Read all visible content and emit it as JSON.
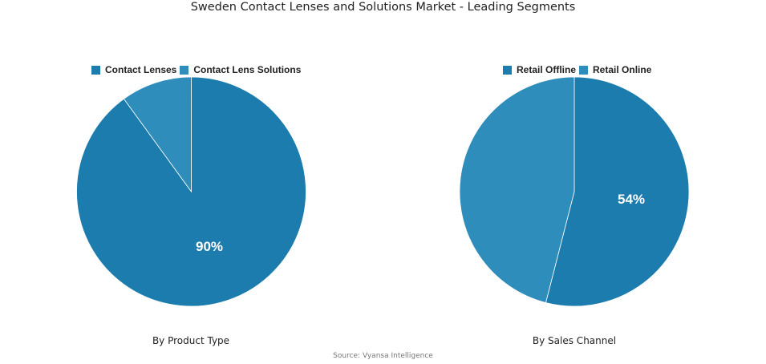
{
  "title": "Sweden Contact Lenses and Solutions Market - Leading Segments",
  "source": "Source: Vyansa Intelligence",
  "colors": {
    "primary": "#1c7cae",
    "secondary": "#2e8dbb"
  },
  "charts": [
    {
      "caption": "By Product Type",
      "legend": [
        "Contact Lenses",
        "Contact Lens Solutions"
      ],
      "label": "90%"
    },
    {
      "caption": "By Sales Channel",
      "legend": [
        "Retail Offline",
        "Retail Online"
      ],
      "label": "54%"
    }
  ],
  "chart_data": [
    {
      "type": "pie",
      "title": "By Product Type",
      "categories": [
        "Contact Lenses",
        "Contact Lens Solutions"
      ],
      "values": [
        90,
        10
      ],
      "labels_shown": [
        "90%",
        ""
      ],
      "legend_position": "top"
    },
    {
      "type": "pie",
      "title": "By Sales Channel",
      "categories": [
        "Retail Offline",
        "Retail Online"
      ],
      "values": [
        54,
        46
      ],
      "labels_shown": [
        "54%",
        ""
      ],
      "legend_position": "top"
    }
  ]
}
